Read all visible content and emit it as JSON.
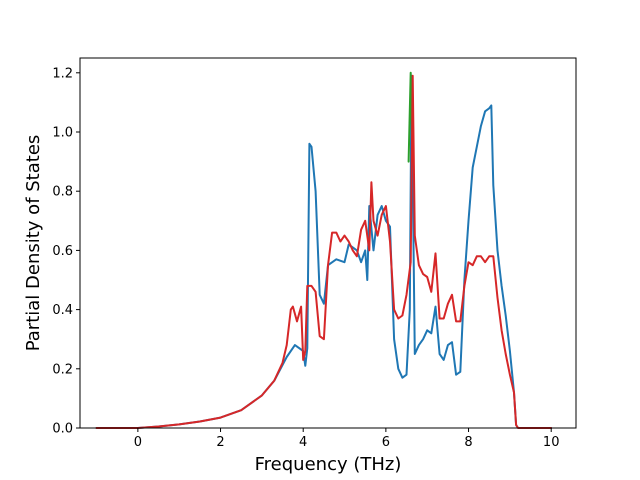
{
  "chart_data": {
    "type": "line",
    "title": "",
    "xlabel": "Frequency (THz)",
    "ylabel": "Partial Density of States",
    "xlim": [
      -1.4,
      10.6
    ],
    "ylim": [
      0.0,
      1.25
    ],
    "xticks": [
      0,
      2,
      4,
      6,
      8,
      10
    ],
    "yticks": [
      0.0,
      0.2,
      0.4,
      0.6,
      0.8,
      1.0,
      1.2
    ],
    "xtick_labels": [
      "0",
      "2",
      "4",
      "6",
      "8",
      "10"
    ],
    "ytick_labels": [
      "0.0",
      "0.2",
      "0.4",
      "0.6",
      "0.8",
      "1.0",
      "1.2"
    ],
    "grid": false,
    "legend": "none",
    "series": [
      {
        "color": "#1f77b4",
        "x": [
          -1.0,
          0.0,
          0.5,
          1.0,
          1.5,
          2.0,
          2.5,
          3.0,
          3.3,
          3.6,
          3.8,
          4.0,
          4.05,
          4.1,
          4.15,
          4.2,
          4.3,
          4.4,
          4.5,
          4.6,
          4.8,
          5.0,
          5.1,
          5.2,
          5.3,
          5.4,
          5.5,
          5.55,
          5.6,
          5.7,
          5.8,
          5.9,
          6.0,
          6.1,
          6.2,
          6.3,
          6.4,
          6.5,
          6.58,
          6.62,
          6.7,
          6.8,
          6.9,
          7.0,
          7.1,
          7.2,
          7.3,
          7.4,
          7.5,
          7.6,
          7.7,
          7.8,
          7.9,
          8.0,
          8.1,
          8.2,
          8.3,
          8.4,
          8.5,
          8.55,
          8.6,
          8.7,
          8.8,
          8.9,
          9.0,
          9.1,
          9.15,
          9.2,
          9.4,
          10.0
        ],
        "y": [
          0.0,
          0.0,
          0.005,
          0.012,
          0.022,
          0.035,
          0.06,
          0.11,
          0.16,
          0.24,
          0.28,
          0.26,
          0.21,
          0.27,
          0.96,
          0.95,
          0.8,
          0.45,
          0.42,
          0.55,
          0.57,
          0.56,
          0.62,
          0.61,
          0.6,
          0.56,
          0.6,
          0.5,
          0.75,
          0.6,
          0.72,
          0.75,
          0.7,
          0.68,
          0.3,
          0.2,
          0.17,
          0.18,
          0.4,
          1.19,
          0.25,
          0.28,
          0.3,
          0.33,
          0.32,
          0.41,
          0.25,
          0.23,
          0.28,
          0.29,
          0.18,
          0.19,
          0.5,
          0.7,
          0.88,
          0.95,
          1.02,
          1.07,
          1.08,
          1.09,
          0.82,
          0.6,
          0.48,
          0.38,
          0.26,
          0.12,
          0.01,
          0.0,
          0.0,
          0.0
        ]
      },
      {
        "color": "#2ca02c",
        "x": [
          6.55,
          6.6,
          6.65
        ],
        "y": [
          0.9,
          1.2,
          0.9
        ]
      },
      {
        "color": "#d62728",
        "x": [
          -1.0,
          0.0,
          0.5,
          1.0,
          1.5,
          2.0,
          2.5,
          3.0,
          3.3,
          3.5,
          3.6,
          3.7,
          3.75,
          3.85,
          3.95,
          4.0,
          4.05,
          4.1,
          4.15,
          4.2,
          4.3,
          4.4,
          4.5,
          4.6,
          4.7,
          4.8,
          4.9,
          5.0,
          5.1,
          5.2,
          5.3,
          5.4,
          5.5,
          5.6,
          5.65,
          5.7,
          5.8,
          5.9,
          6.0,
          6.1,
          6.2,
          6.3,
          6.4,
          6.5,
          6.6,
          6.65,
          6.7,
          6.8,
          6.9,
          7.0,
          7.1,
          7.2,
          7.3,
          7.4,
          7.5,
          7.6,
          7.7,
          7.8,
          7.9,
          8.0,
          8.1,
          8.2,
          8.3,
          8.4,
          8.5,
          8.6,
          8.7,
          8.8,
          8.9,
          9.0,
          9.1,
          9.15,
          9.2,
          9.4,
          10.0
        ],
        "y": [
          0.0,
          0.0,
          0.005,
          0.012,
          0.022,
          0.035,
          0.06,
          0.11,
          0.16,
          0.22,
          0.28,
          0.4,
          0.41,
          0.36,
          0.41,
          0.23,
          0.26,
          0.48,
          0.48,
          0.48,
          0.46,
          0.31,
          0.3,
          0.55,
          0.66,
          0.66,
          0.63,
          0.65,
          0.63,
          0.6,
          0.58,
          0.67,
          0.7,
          0.6,
          0.83,
          0.7,
          0.65,
          0.72,
          0.75,
          0.63,
          0.4,
          0.37,
          0.38,
          0.45,
          0.56,
          1.19,
          0.65,
          0.55,
          0.52,
          0.51,
          0.46,
          0.59,
          0.37,
          0.37,
          0.42,
          0.45,
          0.36,
          0.36,
          0.48,
          0.56,
          0.55,
          0.58,
          0.58,
          0.56,
          0.58,
          0.58,
          0.44,
          0.33,
          0.25,
          0.18,
          0.12,
          0.01,
          0.0,
          0.0,
          0.0
        ]
      }
    ]
  }
}
